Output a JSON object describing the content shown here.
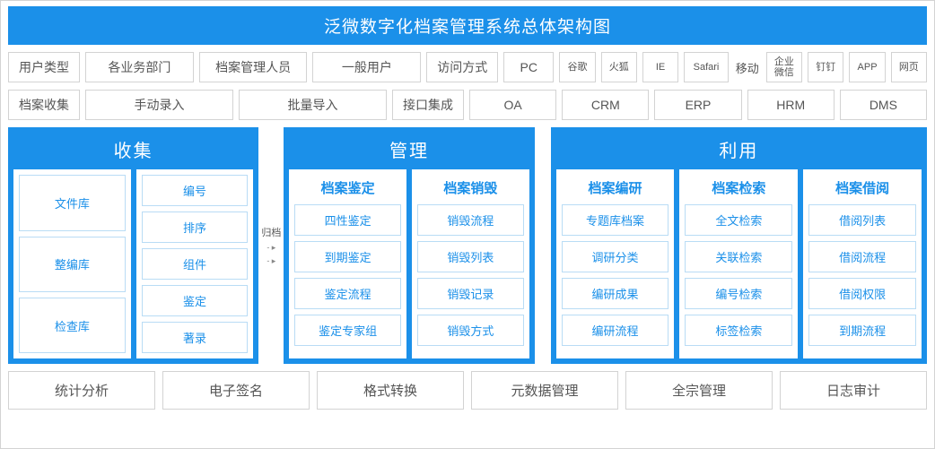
{
  "colors": {
    "primary": "#1b90e9",
    "border_gray": "#d3d3d3",
    "border_light_blue": "#b9dcf5",
    "text_gray": "#555555",
    "white": "#ffffff"
  },
  "title": "泛微数字化档案管理系统总体架构图",
  "row_user": {
    "label": "用户类型",
    "items": [
      "各业务部门",
      "档案管理人员",
      "一般用户"
    ],
    "access_label": "访问方式",
    "access_pc": "PC",
    "browsers": [
      "谷歌",
      "火狐",
      "IE",
      "Safari"
    ],
    "mobile_label": "移动",
    "mobile_items": [
      "企业微信",
      "钉钉",
      "APP",
      "网页"
    ]
  },
  "row_collect": {
    "label": "档案收集",
    "methods": [
      "手动录入",
      "批量导入"
    ],
    "integration_label": "接口集成",
    "integrations": [
      "OA",
      "CRM",
      "ERP",
      "HRM",
      "DMS"
    ]
  },
  "connector_label": "归档",
  "modules": {
    "collect": {
      "title": "收集",
      "cols": [
        {
          "header": null,
          "items": [
            "文件库",
            "整编库",
            "检查库"
          ]
        },
        {
          "header": null,
          "items": [
            "编号",
            "排序",
            "组件",
            "鉴定",
            "著录"
          ]
        }
      ]
    },
    "manage": {
      "title": "管理",
      "cols": [
        {
          "header": "档案鉴定",
          "items": [
            "四性鉴定",
            "到期鉴定",
            "鉴定流程",
            "鉴定专家组"
          ]
        },
        {
          "header": "档案销毁",
          "items": [
            "销毁流程",
            "销毁列表",
            "销毁记录",
            "销毁方式"
          ]
        }
      ]
    },
    "use": {
      "title": "利用",
      "cols": [
        {
          "header": "档案编研",
          "items": [
            "专题库档案",
            "调研分类",
            "编研成果",
            "编研流程"
          ]
        },
        {
          "header": "档案检索",
          "items": [
            "全文检索",
            "关联检索",
            "编号检索",
            "标签检索"
          ]
        },
        {
          "header": "档案借阅",
          "items": [
            "借阅列表",
            "借阅流程",
            "借阅权限",
            "到期流程"
          ]
        }
      ]
    }
  },
  "bottom": [
    "统计分析",
    "电子签名",
    "格式转换",
    "元数据管理",
    "全宗管理",
    "日志审计"
  ]
}
